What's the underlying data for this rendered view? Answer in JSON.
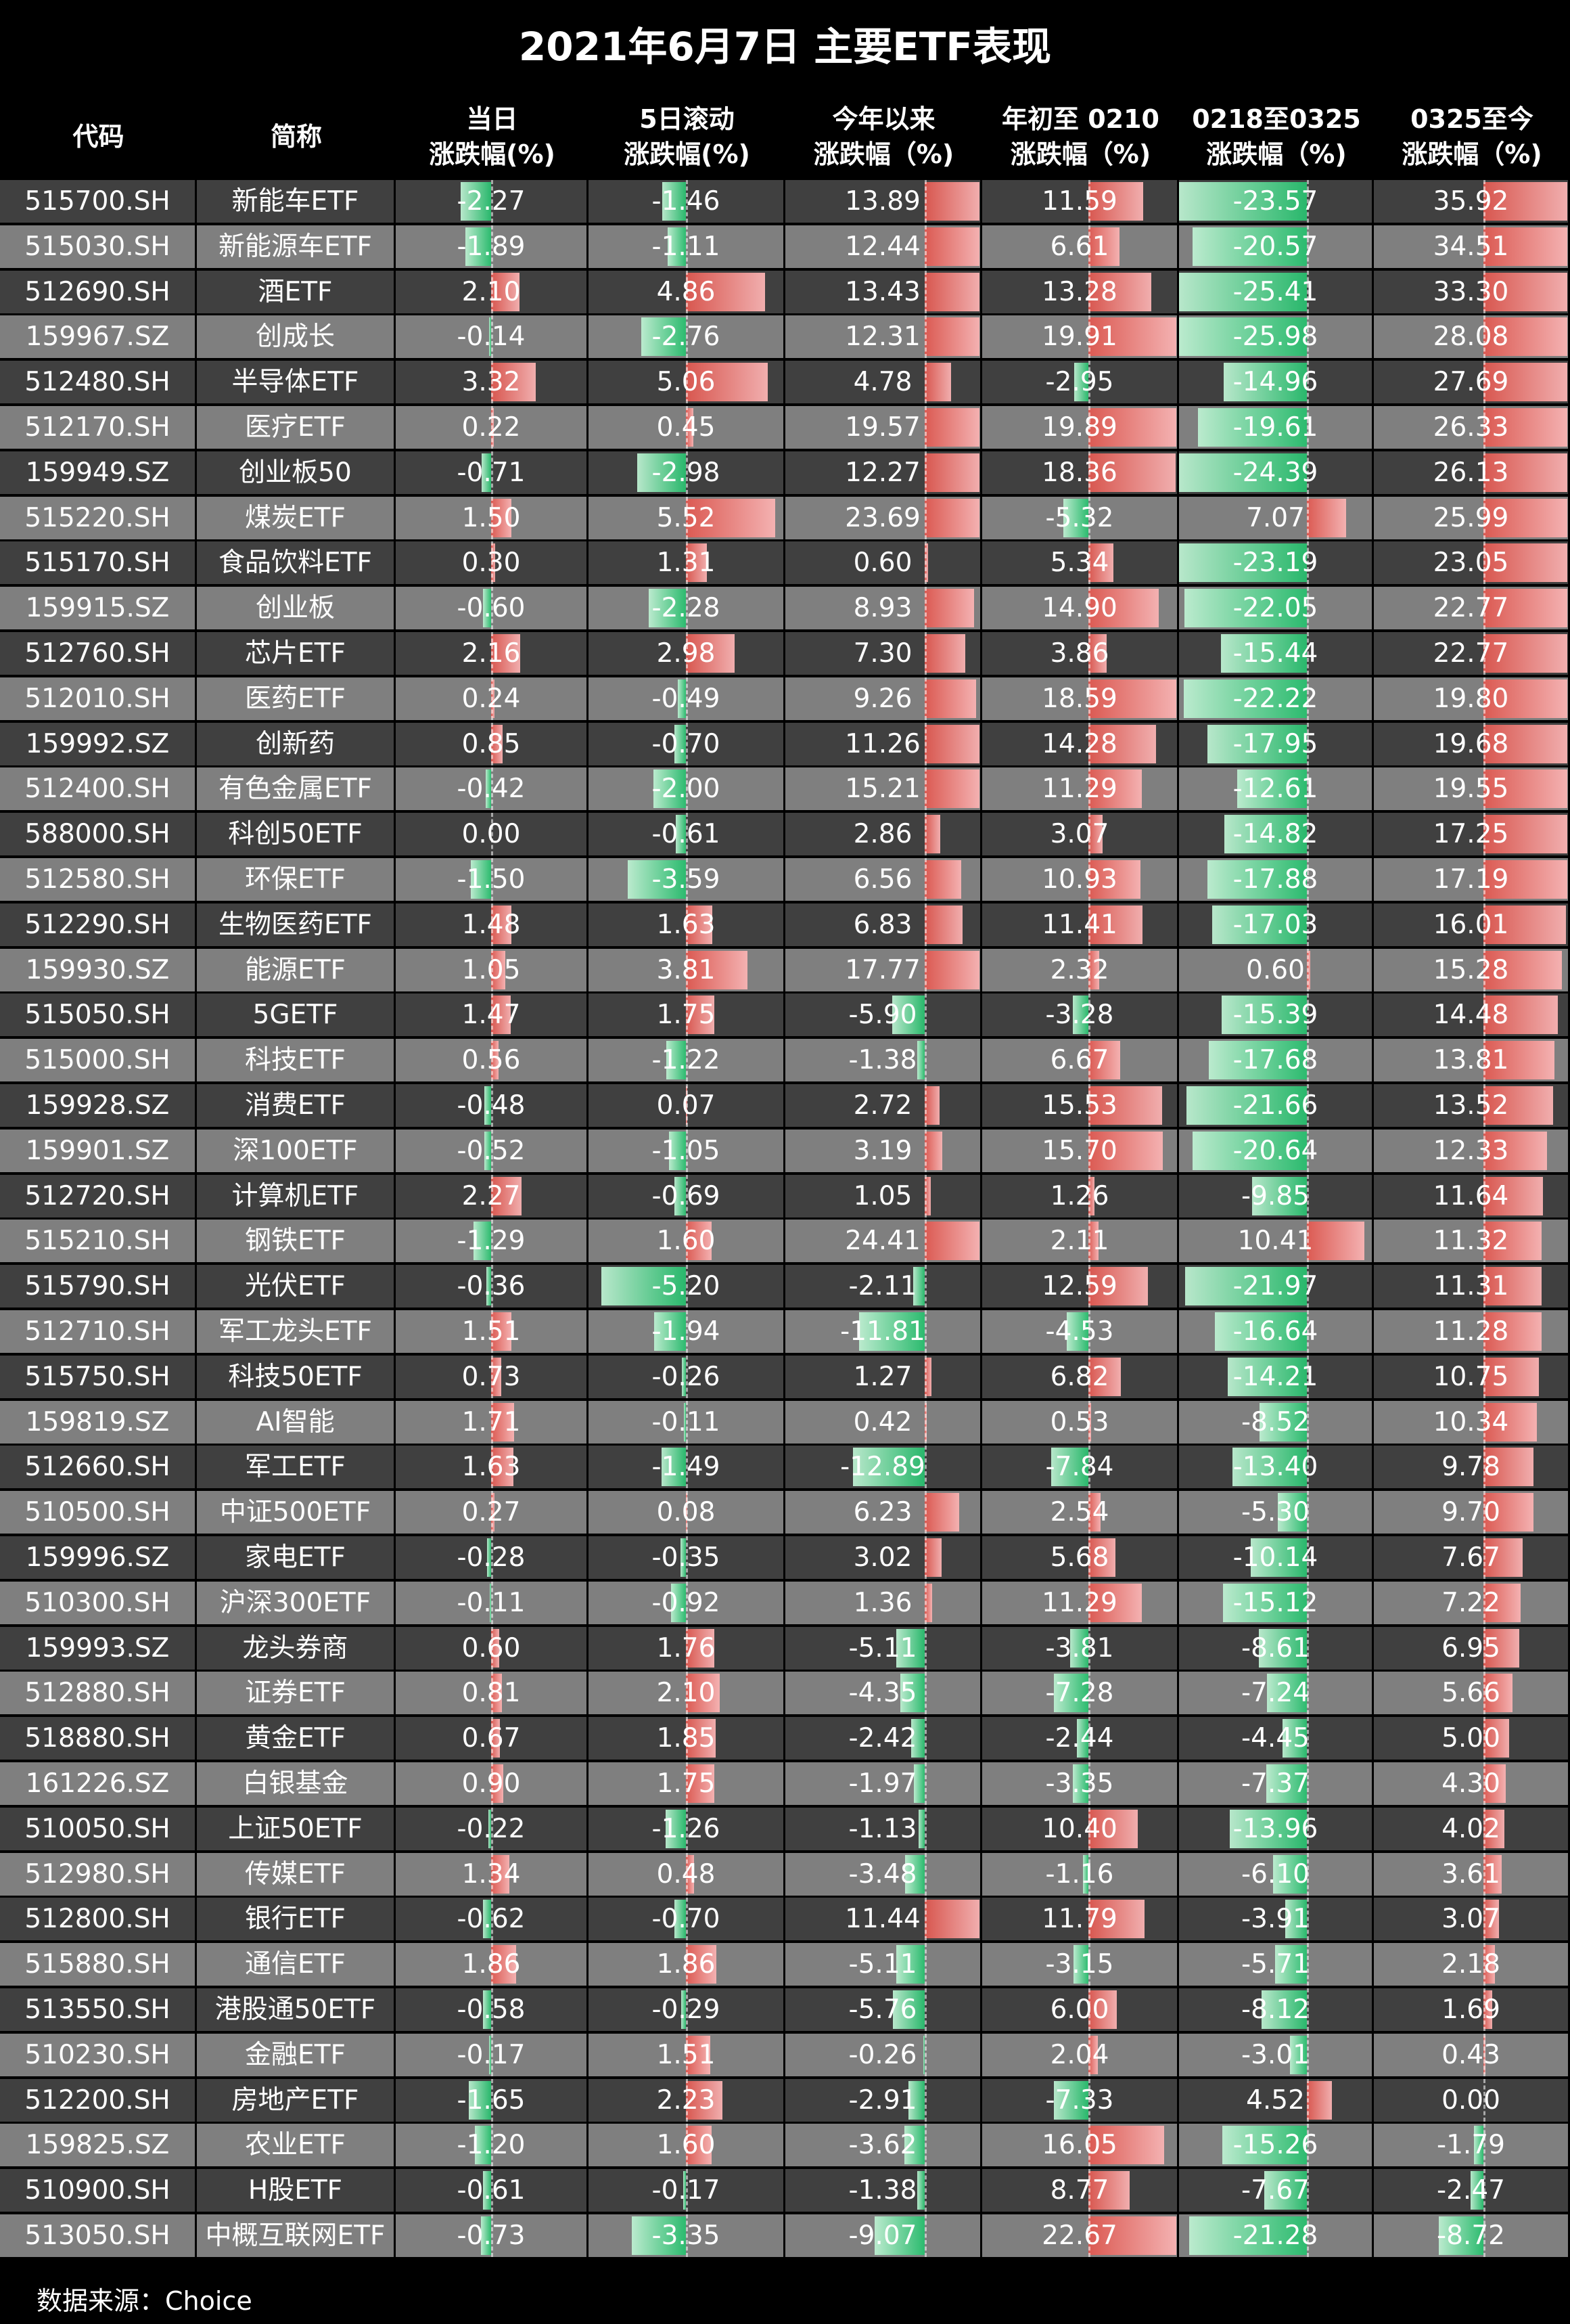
{
  "title": "2021年6月7日 主要ETF表现",
  "footer": "数据来源：Choice",
  "colors": {
    "odd_row": "#404040",
    "even_row": "#7f7f7f",
    "positive_bar": "#e05850",
    "negative_bar": "#2cc070"
  },
  "chart_data": {
    "type": "table",
    "columns": [
      {
        "key": "code",
        "line1": "代码",
        "line2": ""
      },
      {
        "key": "name",
        "line1": "简称",
        "line2": ""
      },
      {
        "key": "day",
        "line1": "当日",
        "line2": "涨跌幅(%)"
      },
      {
        "key": "d5",
        "line1": "5日滚动",
        "line2": "涨跌幅(%)"
      },
      {
        "key": "ytd",
        "line1": "今年以来",
        "line2": "涨跌幅（%)"
      },
      {
        "key": "p1",
        "line1": "年初至 0210",
        "line2": "涨跌幅（%)"
      },
      {
        "key": "p2",
        "line1": "0218至0325",
        "line2": "涨跌幅（%)"
      },
      {
        "key": "p3",
        "line1": "0325至今",
        "line2": "涨跌幅（%)"
      }
    ],
    "rows": [
      [
        "515700.SH",
        "新能车ETF",
        -2.27,
        -1.46,
        13.89,
        11.59,
        -23.57,
        35.92
      ],
      [
        "515030.SH",
        "新能源车ETF",
        -1.89,
        -1.11,
        12.44,
        6.61,
        -20.57,
        34.51
      ],
      [
        "512690.SH",
        "酒ETF",
        2.1,
        4.86,
        13.43,
        13.28,
        -25.41,
        33.3
      ],
      [
        "159967.SZ",
        "创成长",
        -0.14,
        -2.76,
        12.31,
        19.91,
        -25.98,
        28.08
      ],
      [
        "512480.SH",
        "半导体ETF",
        3.32,
        5.06,
        4.78,
        -2.95,
        -14.96,
        27.69
      ],
      [
        "512170.SH",
        "医疗ETF",
        0.22,
        0.45,
        19.57,
        19.89,
        -19.61,
        26.33
      ],
      [
        "159949.SZ",
        "创业板50",
        -0.71,
        -2.98,
        12.27,
        18.36,
        -24.39,
        26.13
      ],
      [
        "515220.SH",
        "煤炭ETF",
        1.5,
        5.52,
        23.69,
        -5.32,
        7.07,
        25.99
      ],
      [
        "515170.SH",
        "食品饮料ETF",
        0.3,
        1.31,
        0.6,
        5.34,
        -23.19,
        23.05
      ],
      [
        "159915.SZ",
        "创业板",
        -0.6,
        -2.28,
        8.93,
        14.9,
        -22.05,
        22.77
      ],
      [
        "512760.SH",
        "芯片ETF",
        2.16,
        2.98,
        7.3,
        3.86,
        -15.44,
        22.77
      ],
      [
        "512010.SH",
        "医药ETF",
        0.24,
        -0.49,
        9.26,
        18.59,
        -22.22,
        19.8
      ],
      [
        "159992.SZ",
        "创新药",
        0.85,
        -0.7,
        11.26,
        14.28,
        -17.95,
        19.68
      ],
      [
        "512400.SH",
        "有色金属ETF",
        -0.42,
        -2.0,
        15.21,
        11.29,
        -12.61,
        19.55
      ],
      [
        "588000.SH",
        "科创50ETF",
        0.0,
        -0.61,
        2.86,
        3.07,
        -14.82,
        17.25
      ],
      [
        "512580.SH",
        "环保ETF",
        -1.5,
        -3.59,
        6.56,
        10.93,
        -17.88,
        17.19
      ],
      [
        "512290.SH",
        "生物医药ETF",
        1.48,
        1.63,
        6.83,
        11.41,
        -17.03,
        16.01
      ],
      [
        "159930.SZ",
        "能源ETF",
        1.05,
        3.81,
        17.77,
        2.32,
        0.6,
        15.28
      ],
      [
        "515050.SH",
        "5GETF",
        1.47,
        1.75,
        -5.9,
        -3.28,
        -15.39,
        14.48
      ],
      [
        "515000.SH",
        "科技ETF",
        0.56,
        -1.22,
        -1.38,
        6.67,
        -17.68,
        13.81
      ],
      [
        "159928.SZ",
        "消费ETF",
        -0.48,
        0.07,
        2.72,
        15.53,
        -21.66,
        13.52
      ],
      [
        "159901.SZ",
        "深100ETF",
        -0.52,
        -1.05,
        3.19,
        15.7,
        -20.64,
        12.33
      ],
      [
        "512720.SH",
        "计算机ETF",
        2.27,
        -0.69,
        1.05,
        1.26,
        -9.85,
        11.64
      ],
      [
        "515210.SH",
        "钢铁ETF",
        -1.29,
        1.6,
        24.41,
        2.11,
        10.41,
        11.32
      ],
      [
        "515790.SH",
        "光伏ETF",
        -0.36,
        -5.2,
        -2.11,
        12.59,
        -21.97,
        11.31
      ],
      [
        "512710.SH",
        "军工龙头ETF",
        1.51,
        -1.94,
        -11.81,
        -4.53,
        -16.64,
        11.28
      ],
      [
        "515750.SH",
        "科技50ETF",
        0.73,
        -0.26,
        1.27,
        6.82,
        -14.21,
        10.75
      ],
      [
        "159819.SZ",
        "AI智能",
        1.71,
        -0.11,
        0.42,
        0.53,
        -8.52,
        10.34
      ],
      [
        "512660.SH",
        "军工ETF",
        1.63,
        -1.49,
        -12.89,
        -7.84,
        -13.4,
        9.78
      ],
      [
        "510500.SH",
        "中证500ETF",
        0.27,
        0.08,
        6.23,
        2.54,
        -5.3,
        9.7
      ],
      [
        "159996.SZ",
        "家电ETF",
        -0.28,
        -0.35,
        3.02,
        5.68,
        -10.14,
        7.67
      ],
      [
        "510300.SH",
        "沪深300ETF",
        -0.11,
        -0.92,
        1.36,
        11.29,
        -15.12,
        7.22
      ],
      [
        "159993.SZ",
        "龙头券商",
        0.6,
        1.76,
        -5.11,
        -3.81,
        -8.61,
        6.95
      ],
      [
        "512880.SH",
        "证券ETF",
        0.81,
        2.1,
        -4.35,
        -7.28,
        -7.24,
        5.66
      ],
      [
        "518880.SH",
        "黄金ETF",
        0.67,
        1.85,
        -2.42,
        -2.44,
        -4.45,
        5.0
      ],
      [
        "161226.SZ",
        "白银基金",
        0.9,
        1.75,
        -1.97,
        -3.35,
        -7.37,
        4.3
      ],
      [
        "510050.SH",
        "上证50ETF",
        -0.22,
        -1.26,
        -1.13,
        10.4,
        -13.96,
        4.02
      ],
      [
        "512980.SH",
        "传媒ETF",
        1.34,
        0.48,
        -3.48,
        -1.16,
        -6.1,
        3.61
      ],
      [
        "512800.SH",
        "银行ETF",
        -0.62,
        -0.7,
        11.44,
        11.79,
        -3.91,
        3.07
      ],
      [
        "515880.SH",
        "通信ETF",
        1.86,
        1.86,
        -5.11,
        -3.15,
        -5.71,
        2.18
      ],
      [
        "513550.SH",
        "港股通50ETF",
        -0.58,
        -0.29,
        -5.76,
        6.0,
        -8.12,
        1.69
      ],
      [
        "510230.SH",
        "金融ETF",
        -0.17,
        1.51,
        -0.26,
        2.04,
        -3.01,
        0.43
      ],
      [
        "512200.SH",
        "房地产ETF",
        -1.65,
        2.23,
        -2.91,
        -7.33,
        4.52,
        0.0
      ],
      [
        "159825.SZ",
        "农业ETF",
        -1.2,
        1.6,
        -3.62,
        16.05,
        -15.26,
        -1.79
      ],
      [
        "510900.SH",
        "H股ETF",
        -0.61,
        -0.17,
        -1.38,
        8.77,
        -7.67,
        -2.47
      ],
      [
        "513050.SH",
        "中概互联网ETF",
        -0.73,
        -3.35,
        -9.07,
        22.67,
        -21.28,
        -8.72
      ]
    ]
  }
}
